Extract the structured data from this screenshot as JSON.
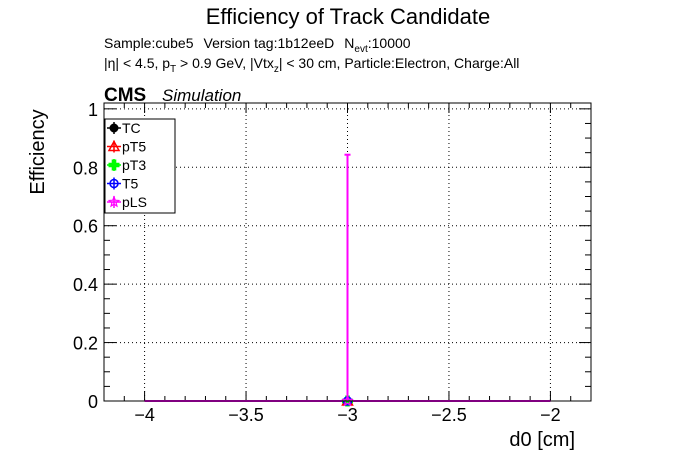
{
  "chart_data": {
    "type": "scatter",
    "title": "Efficiency of Track Candidate",
    "subtitle_line1": {
      "sample": "Sample:cube5",
      "version": "Version tag:1b12eeD",
      "nevt_main": "N",
      "nevt_sub": "evt",
      "nevt_value": ":10000"
    },
    "subtitle_line2": {
      "part1": "|η| < 4.5, p",
      "part1_sub": "T",
      "part2": " > 0.9 GeV, |Vtx",
      "part2_sub": "z",
      "part3": "| < 30 cm, Particle:Electron, Charge:All"
    },
    "cms_label": "CMS",
    "cms_sublabel": "Simulation",
    "xlabel": "d0 [cm]",
    "ylabel": "Efficiency",
    "xlim": [
      -4.2,
      -1.8
    ],
    "ylim": [
      0,
      1.02
    ],
    "xticks": [
      {
        "v": -4,
        "label": "−4"
      },
      {
        "v": -3.5,
        "label": "−3.5"
      },
      {
        "v": -3,
        "label": "−3"
      },
      {
        "v": -2.5,
        "label": "−2.5"
      },
      {
        "v": -2,
        "label": "−2"
      }
    ],
    "yticks": [
      {
        "v": 0,
        "label": "0"
      },
      {
        "v": 0.2,
        "label": "0.2"
      },
      {
        "v": 0.4,
        "label": "0.4"
      },
      {
        "v": 0.6,
        "label": "0.6"
      },
      {
        "v": 0.8,
        "label": "0.8"
      },
      {
        "v": 1,
        "label": "1"
      }
    ],
    "grid": true,
    "legend_position": "top-left",
    "series": [
      {
        "name": "TC",
        "color": "#000000",
        "marker": "circle-filled",
        "points": [
          {
            "x": -3,
            "y": 0
          }
        ]
      },
      {
        "name": "pT5",
        "color": "#ff0000",
        "marker": "triangle-open",
        "points": [
          {
            "x": -3,
            "y": 0
          }
        ]
      },
      {
        "name": "pT3",
        "color": "#00ff00",
        "marker": "cross-filled",
        "points": [
          {
            "x": -3,
            "y": 0
          }
        ]
      },
      {
        "name": "T5",
        "color": "#0000ff",
        "marker": "circle-open",
        "points": [
          {
            "x": -3,
            "y": 0
          }
        ]
      },
      {
        "name": "pLS",
        "color": "#ff00ff",
        "marker": "star-open",
        "points": [
          {
            "x": -3,
            "y": 0,
            "err_up": 0.843
          }
        ],
        "line": {
          "from": -4,
          "to": -2,
          "y": 0
        }
      }
    ]
  }
}
